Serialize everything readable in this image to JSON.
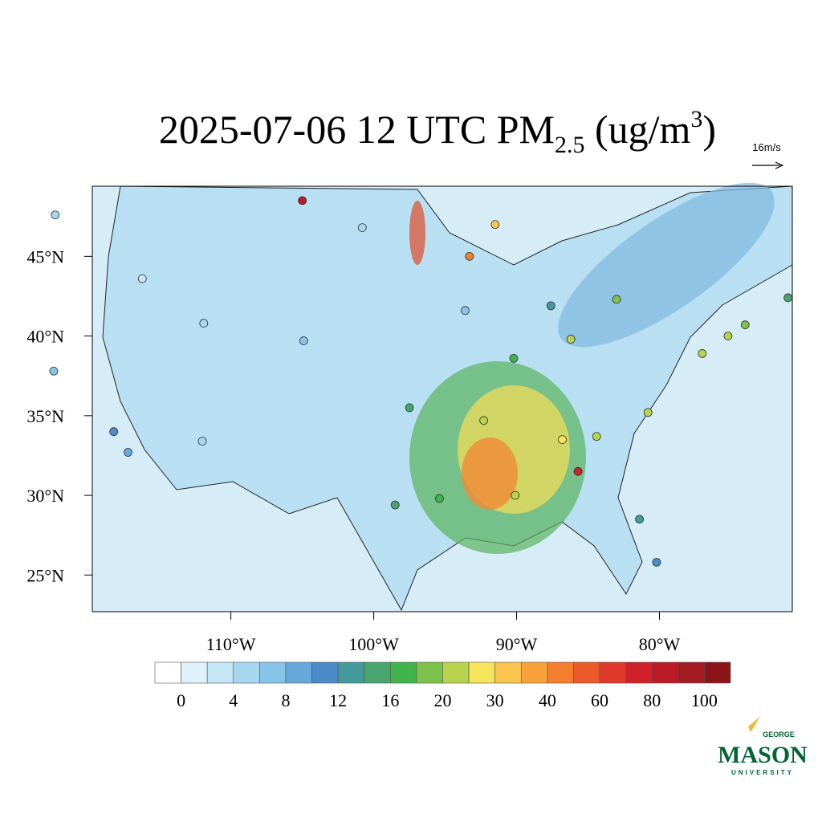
{
  "title": {
    "text": "2025-07-06 12 UTC PM",
    "subscript": "2.5",
    "units": " (ug/m",
    "superscript": "3",
    "close": ")"
  },
  "wind_reference": "16m/s",
  "map": {
    "xlim": [
      -119.7,
      -70.7
    ],
    "ylim": [
      22.7,
      49.4
    ],
    "lon_ticks": [
      {
        "value": -110,
        "label": "110°W"
      },
      {
        "value": -100,
        "label": "100°W"
      },
      {
        "value": -90,
        "label": "90°W"
      },
      {
        "value": -80,
        "label": "80°W"
      }
    ],
    "lat_ticks": [
      {
        "value": 25,
        "label": "25°N"
      },
      {
        "value": 30,
        "label": "30°N"
      },
      {
        "value": 35,
        "label": "35°N"
      },
      {
        "value": 40,
        "label": "40°N"
      },
      {
        "value": 45,
        "label": "45°N"
      }
    ],
    "stations": [
      {
        "lon": -122.4,
        "lat": 37.8,
        "value": 6
      },
      {
        "lon": -118.2,
        "lat": 34.0,
        "value": 10
      },
      {
        "lon": -117.2,
        "lat": 32.7,
        "value": 8
      },
      {
        "lon": -122.3,
        "lat": 47.6,
        "value": 4
      },
      {
        "lon": -104.9,
        "lat": 39.7,
        "value": 6
      },
      {
        "lon": -112.0,
        "lat": 33.4,
        "value": 4
      },
      {
        "lon": -97.5,
        "lat": 35.5,
        "value": 14
      },
      {
        "lon": -95.4,
        "lat": 29.8,
        "value": 16
      },
      {
        "lon": -90.1,
        "lat": 30.0,
        "value": 24
      },
      {
        "lon": -86.8,
        "lat": 33.5,
        "value": 28
      },
      {
        "lon": -84.4,
        "lat": 33.7,
        "value": 22
      },
      {
        "lon": -87.6,
        "lat": 41.9,
        "value": 12
      },
      {
        "lon": -83.0,
        "lat": 42.3,
        "value": 18
      },
      {
        "lon": -80.8,
        "lat": 35.2,
        "value": 20
      },
      {
        "lon": -77.0,
        "lat": 38.9,
        "value": 22
      },
      {
        "lon": -75.2,
        "lat": 40.0,
        "value": 20
      },
      {
        "lon": -74.0,
        "lat": 40.7,
        "value": 18
      },
      {
        "lon": -71.0,
        "lat": 42.4,
        "value": 14
      },
      {
        "lon": -81.4,
        "lat": 28.5,
        "value": 12
      },
      {
        "lon": -80.2,
        "lat": 25.8,
        "value": 10
      },
      {
        "lon": -90.2,
        "lat": 38.6,
        "value": 16
      },
      {
        "lon": -86.2,
        "lat": 39.8,
        "value": 20
      },
      {
        "lon": -93.3,
        "lat": 45.0,
        "value": 40
      },
      {
        "lon": -91.5,
        "lat": 47.0,
        "value": 30
      },
      {
        "lon": -105.0,
        "lat": 48.5,
        "value": 80
      },
      {
        "lon": -85.7,
        "lat": 31.5,
        "value": 70
      },
      {
        "lon": -98.5,
        "lat": 29.4,
        "value": 14
      },
      {
        "lon": -111.9,
        "lat": 40.8,
        "value": 4
      },
      {
        "lon": -116.2,
        "lat": 43.6,
        "value": 2
      },
      {
        "lon": -93.6,
        "lat": 41.6,
        "value": 6
      },
      {
        "lon": -100.8,
        "lat": 46.8,
        "value": 4
      },
      {
        "lon": -92.3,
        "lat": 34.7,
        "value": 24
      }
    ]
  },
  "colorbar": {
    "levels": [
      0,
      4,
      8,
      12,
      16,
      20,
      30,
      40,
      60,
      80,
      100
    ],
    "colors": [
      "#ffffff",
      "#dff1fa",
      "#c5e6f5",
      "#a6d8f0",
      "#86c4e8",
      "#68a9dc",
      "#4a8bc8",
      "#44999a",
      "#48a56e",
      "#40b44a",
      "#7dc24b",
      "#b7d34d",
      "#f6e55a",
      "#fac54c",
      "#f9a23a",
      "#f47e2d",
      "#ec5a2a",
      "#e0382a",
      "#d0202a",
      "#bb1a26",
      "#a31a22",
      "#8a1418"
    ]
  },
  "logo": {
    "top": "GEORGE",
    "name": "MASON",
    "bottom": "UNIVERSITY"
  }
}
